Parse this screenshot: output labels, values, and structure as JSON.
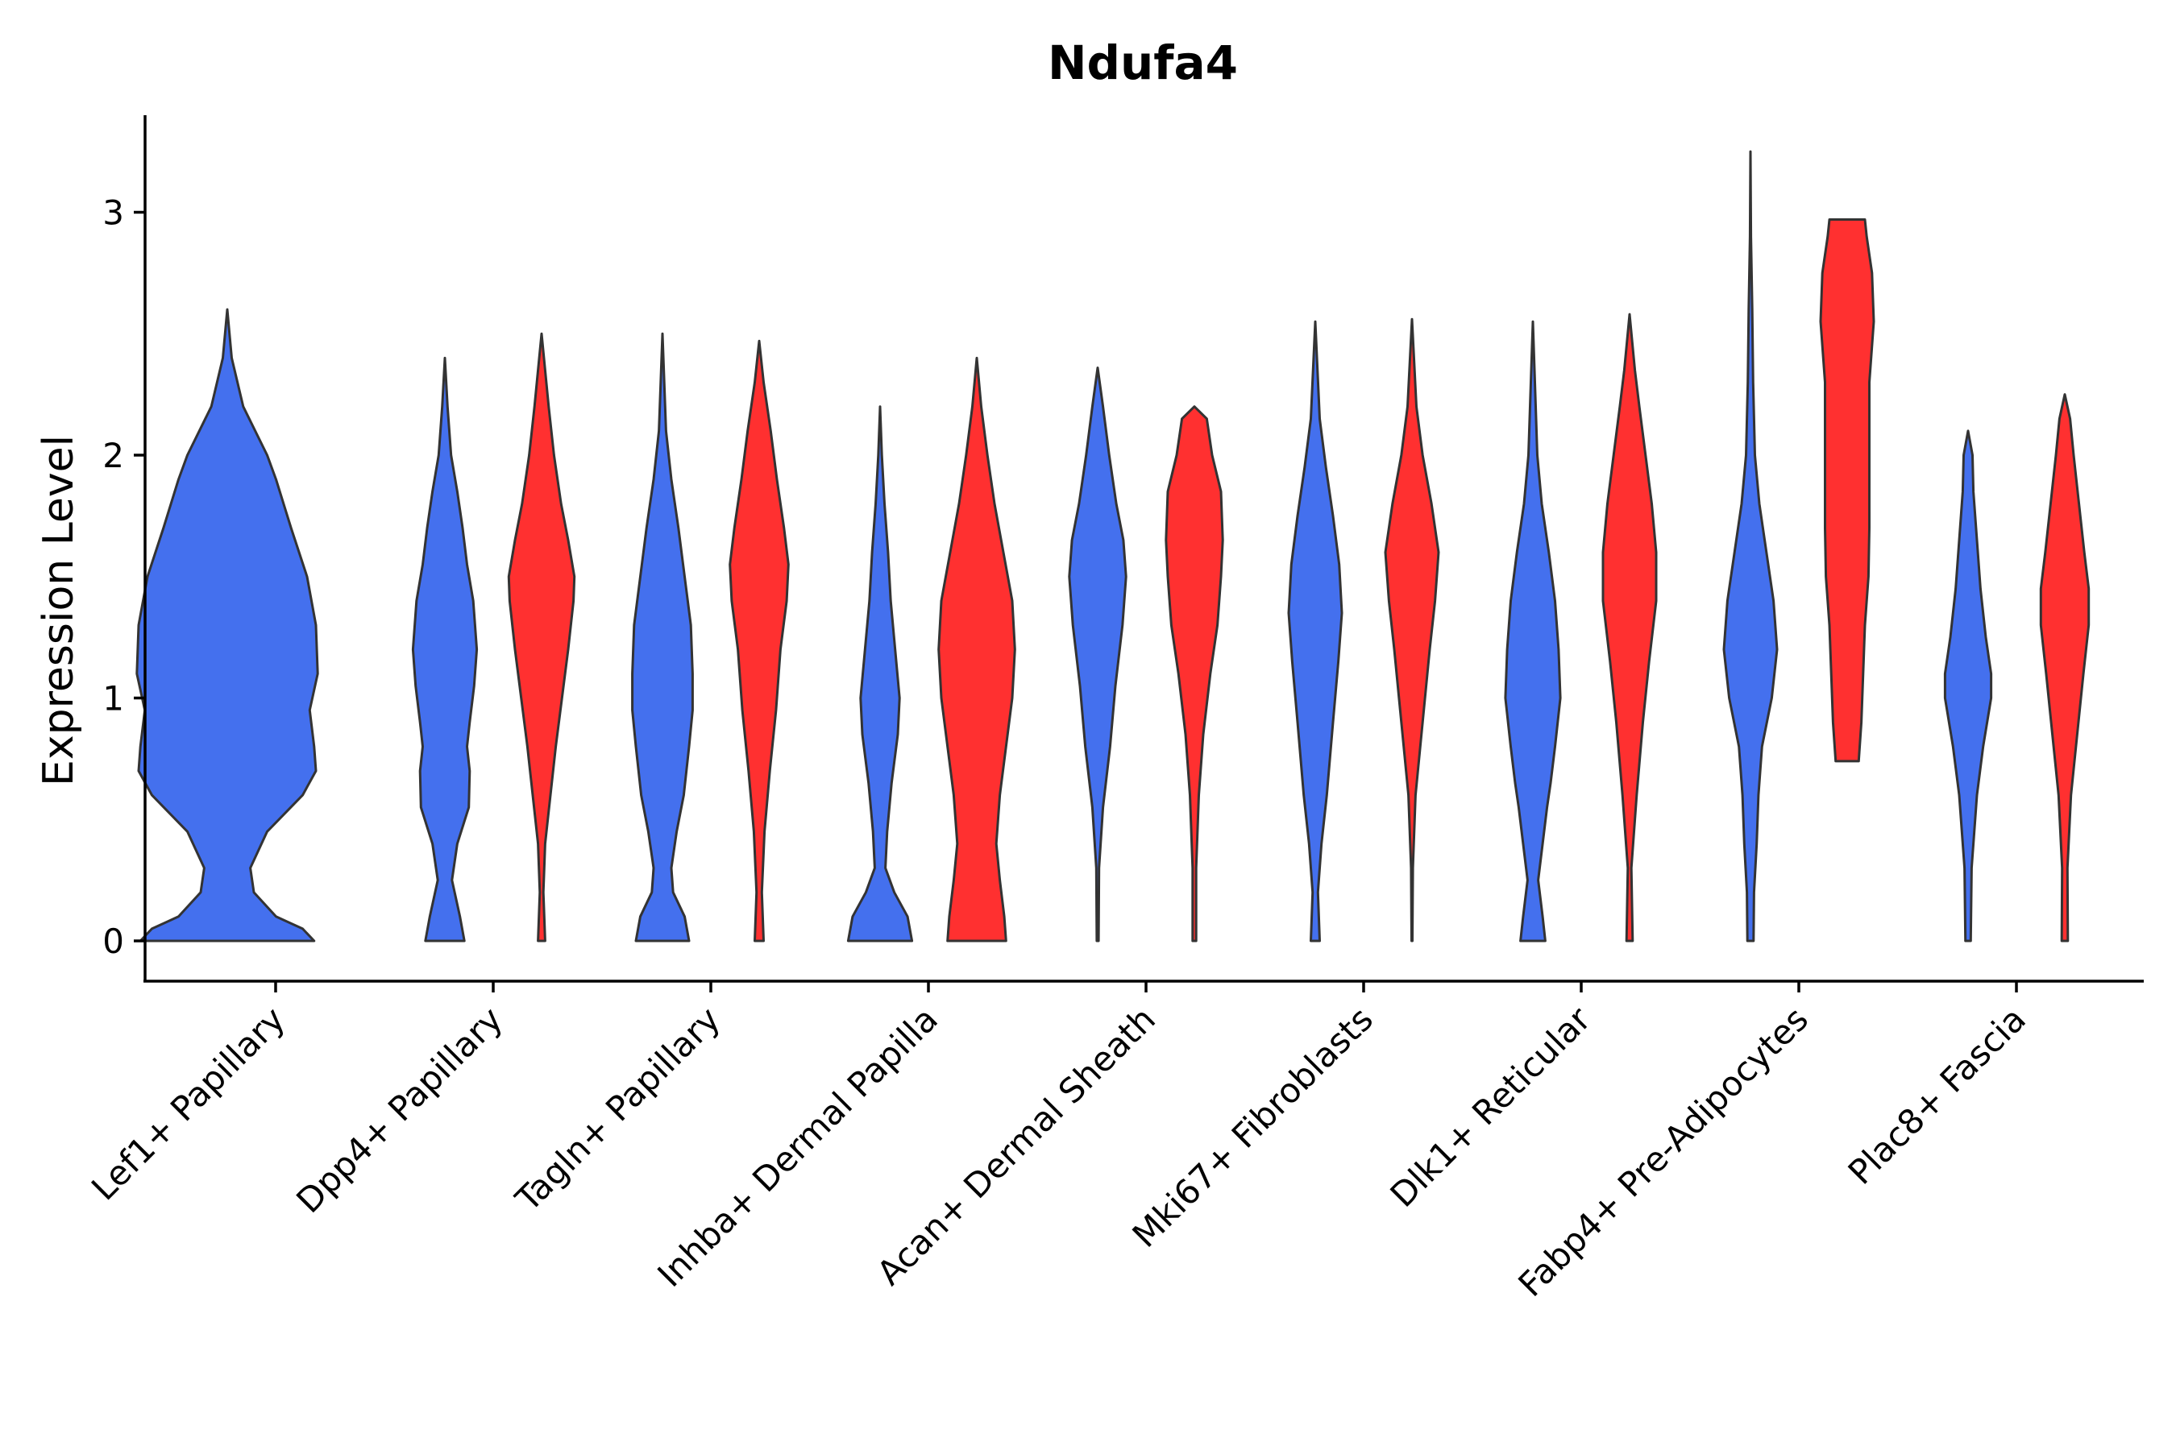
{
  "chart_data": {
    "type": "violin",
    "title": "Ndufa4",
    "xlabel": "",
    "ylabel": "Expression Level",
    "ylim": [
      -0.16,
      3.4
    ],
    "yticks": [
      0,
      1,
      2,
      3
    ],
    "grid": false,
    "legend": "none",
    "colors": {
      "blue": "#4470EE",
      "red": "#FF3030"
    },
    "categories": [
      "Lef1+ Papillary",
      "Dpp4+ Papillary",
      "Tagln+ Papillary",
      "Inhba+ Dermal Papilla",
      "Acan+ Dermal Sheath",
      "Mki67+ Fibroblasts",
      "Dlk1+ Reticular",
      "Fabp4+ Pre-Adipocytes",
      "Plac8+ Fascia"
    ],
    "violins": [
      {
        "category": 0,
        "group": "blue",
        "min": 0,
        "max": 2.6,
        "profile": [
          [
            0,
            0.98
          ],
          [
            0.05,
            0.85
          ],
          [
            0.1,
            0.55
          ],
          [
            0.2,
            0.3
          ],
          [
            0.3,
            0.26
          ],
          [
            0.45,
            0.45
          ],
          [
            0.6,
            0.85
          ],
          [
            0.7,
            1.0
          ],
          [
            0.8,
            0.98
          ],
          [
            0.95,
            0.93
          ],
          [
            1.1,
            1.02
          ],
          [
            1.3,
            1.0
          ],
          [
            1.5,
            0.9
          ],
          [
            1.7,
            0.72
          ],
          [
            1.9,
            0.55
          ],
          [
            2.0,
            0.45
          ],
          [
            2.2,
            0.18
          ],
          [
            2.4,
            0.05
          ],
          [
            2.6,
            0
          ]
        ]
      },
      {
        "category": 1,
        "group": "blue",
        "min": 0,
        "max": 2.4,
        "profile": [
          [
            0,
            0.22
          ],
          [
            0.1,
            0.17
          ],
          [
            0.25,
            0.08
          ],
          [
            0.4,
            0.14
          ],
          [
            0.55,
            0.27
          ],
          [
            0.7,
            0.28
          ],
          [
            0.8,
            0.25
          ],
          [
            0.9,
            0.28
          ],
          [
            1.05,
            0.33
          ],
          [
            1.2,
            0.36
          ],
          [
            1.4,
            0.32
          ],
          [
            1.55,
            0.25
          ],
          [
            1.7,
            0.2
          ],
          [
            1.85,
            0.14
          ],
          [
            2.0,
            0.07
          ],
          [
            2.2,
            0.03
          ],
          [
            2.4,
            0
          ]
        ]
      },
      {
        "category": 1,
        "group": "red",
        "min": 0,
        "max": 2.5,
        "profile": [
          [
            0,
            0.04
          ],
          [
            0.2,
            0.02
          ],
          [
            0.4,
            0.04
          ],
          [
            0.6,
            0.1
          ],
          [
            0.8,
            0.16
          ],
          [
            1.0,
            0.23
          ],
          [
            1.2,
            0.3
          ],
          [
            1.4,
            0.36
          ],
          [
            1.5,
            0.37
          ],
          [
            1.65,
            0.3
          ],
          [
            1.8,
            0.22
          ],
          [
            2.0,
            0.14
          ],
          [
            2.2,
            0.08
          ],
          [
            2.35,
            0.04
          ],
          [
            2.5,
            0
          ]
        ]
      },
      {
        "category": 2,
        "group": "blue",
        "min": 0,
        "max": 2.5,
        "profile": [
          [
            0,
            0.3
          ],
          [
            0.1,
            0.25
          ],
          [
            0.2,
            0.12
          ],
          [
            0.3,
            0.1
          ],
          [
            0.45,
            0.16
          ],
          [
            0.6,
            0.24
          ],
          [
            0.8,
            0.3
          ],
          [
            0.95,
            0.34
          ],
          [
            1.1,
            0.34
          ],
          [
            1.3,
            0.32
          ],
          [
            1.5,
            0.25
          ],
          [
            1.7,
            0.18
          ],
          [
            1.9,
            0.1
          ],
          [
            2.1,
            0.04
          ],
          [
            2.5,
            0
          ]
        ]
      },
      {
        "category": 2,
        "group": "red",
        "min": 0,
        "max": 2.47,
        "profile": [
          [
            0,
            0.05
          ],
          [
            0.2,
            0.03
          ],
          [
            0.45,
            0.06
          ],
          [
            0.7,
            0.12
          ],
          [
            0.95,
            0.19
          ],
          [
            1.2,
            0.24
          ],
          [
            1.4,
            0.31
          ],
          [
            1.55,
            0.33
          ],
          [
            1.7,
            0.28
          ],
          [
            1.9,
            0.2
          ],
          [
            2.1,
            0.13
          ],
          [
            2.3,
            0.05
          ],
          [
            2.47,
            0
          ]
        ]
      },
      {
        "category": 3,
        "group": "blue",
        "min": 0,
        "max": 2.2,
        "profile": [
          [
            0,
            0.36
          ],
          [
            0.1,
            0.31
          ],
          [
            0.2,
            0.16
          ],
          [
            0.3,
            0.06
          ],
          [
            0.45,
            0.08
          ],
          [
            0.65,
            0.13
          ],
          [
            0.85,
            0.2
          ],
          [
            1.0,
            0.22
          ],
          [
            1.2,
            0.17
          ],
          [
            1.4,
            0.12
          ],
          [
            1.6,
            0.09
          ],
          [
            1.8,
            0.05
          ],
          [
            2.0,
            0.02
          ],
          [
            2.2,
            0
          ]
        ]
      },
      {
        "category": 3,
        "group": "red",
        "min": 0,
        "max": 2.4,
        "profile": [
          [
            0,
            0.33
          ],
          [
            0.1,
            0.31
          ],
          [
            0.25,
            0.26
          ],
          [
            0.4,
            0.22
          ],
          [
            0.6,
            0.26
          ],
          [
            0.8,
            0.33
          ],
          [
            1.0,
            0.4
          ],
          [
            1.2,
            0.43
          ],
          [
            1.4,
            0.4
          ],
          [
            1.6,
            0.3
          ],
          [
            1.8,
            0.2
          ],
          [
            2.0,
            0.12
          ],
          [
            2.2,
            0.05
          ],
          [
            2.4,
            0
          ]
        ]
      },
      {
        "category": 4,
        "group": "blue",
        "min": 0,
        "max": 2.36,
        "profile": [
          [
            0,
            0.01
          ],
          [
            0.3,
            0.015
          ],
          [
            0.55,
            0.06
          ],
          [
            0.8,
            0.14
          ],
          [
            1.05,
            0.2
          ],
          [
            1.3,
            0.28
          ],
          [
            1.5,
            0.32
          ],
          [
            1.65,
            0.29
          ],
          [
            1.8,
            0.21
          ],
          [
            2.0,
            0.13
          ],
          [
            2.2,
            0.06
          ],
          [
            2.36,
            0
          ]
        ]
      },
      {
        "category": 4,
        "group": "red",
        "min": 0,
        "max": 2.2,
        "profile": [
          [
            0,
            0.02
          ],
          [
            0.3,
            0.02
          ],
          [
            0.6,
            0.05
          ],
          [
            0.85,
            0.1
          ],
          [
            1.1,
            0.18
          ],
          [
            1.3,
            0.26
          ],
          [
            1.5,
            0.3
          ],
          [
            1.65,
            0.32
          ],
          [
            1.85,
            0.3
          ],
          [
            2.0,
            0.2
          ],
          [
            2.15,
            0.14
          ],
          [
            2.2,
            0
          ]
        ]
      },
      {
        "category": 5,
        "group": "blue",
        "min": 0,
        "max": 2.55,
        "profile": [
          [
            0,
            0.05
          ],
          [
            0.2,
            0.03
          ],
          [
            0.4,
            0.07
          ],
          [
            0.6,
            0.13
          ],
          [
            0.9,
            0.2
          ],
          [
            1.15,
            0.26
          ],
          [
            1.35,
            0.3
          ],
          [
            1.55,
            0.27
          ],
          [
            1.75,
            0.2
          ],
          [
            1.95,
            0.12
          ],
          [
            2.15,
            0.05
          ],
          [
            2.55,
            0
          ]
        ]
      },
      {
        "category": 5,
        "group": "red",
        "min": 0,
        "max": 2.56,
        "profile": [
          [
            0,
            0.005
          ],
          [
            0.3,
            0.01
          ],
          [
            0.6,
            0.04
          ],
          [
            0.9,
            0.12
          ],
          [
            1.2,
            0.2
          ],
          [
            1.4,
            0.26
          ],
          [
            1.6,
            0.3
          ],
          [
            1.8,
            0.22
          ],
          [
            2.0,
            0.12
          ],
          [
            2.2,
            0.05
          ],
          [
            2.56,
            0
          ]
        ]
      },
      {
        "category": 6,
        "group": "blue",
        "min": 0,
        "max": 2.55,
        "profile": [
          [
            0,
            0.14
          ],
          [
            0.1,
            0.11
          ],
          [
            0.25,
            0.06
          ],
          [
            0.4,
            0.11
          ],
          [
            0.55,
            0.16
          ],
          [
            0.65,
            0.2
          ],
          [
            0.8,
            0.25
          ],
          [
            1.0,
            0.31
          ],
          [
            1.2,
            0.29
          ],
          [
            1.4,
            0.25
          ],
          [
            1.6,
            0.18
          ],
          [
            1.8,
            0.1
          ],
          [
            2.0,
            0.05
          ],
          [
            2.55,
            0
          ]
        ]
      },
      {
        "category": 6,
        "group": "red",
        "min": 0,
        "max": 2.58,
        "profile": [
          [
            0,
            0.035
          ],
          [
            0.3,
            0.02
          ],
          [
            0.6,
            0.08
          ],
          [
            0.9,
            0.15
          ],
          [
            1.15,
            0.22
          ],
          [
            1.4,
            0.3
          ],
          [
            1.6,
            0.3
          ],
          [
            1.8,
            0.25
          ],
          [
            2.0,
            0.18
          ],
          [
            2.2,
            0.11
          ],
          [
            2.35,
            0.06
          ],
          [
            2.58,
            0
          ]
        ]
      },
      {
        "category": 7,
        "group": "blue",
        "min": 0,
        "max": 3.25,
        "profile": [
          [
            0,
            0.035
          ],
          [
            0.2,
            0.04
          ],
          [
            0.4,
            0.07
          ],
          [
            0.6,
            0.09
          ],
          [
            0.8,
            0.13
          ],
          [
            1.0,
            0.24
          ],
          [
            1.2,
            0.3
          ],
          [
            1.4,
            0.26
          ],
          [
            1.6,
            0.18
          ],
          [
            1.8,
            0.1
          ],
          [
            2.0,
            0.05
          ],
          [
            2.3,
            0.03
          ],
          [
            2.6,
            0.02
          ],
          [
            2.9,
            0.005
          ],
          [
            3.25,
            0
          ]
        ]
      },
      {
        "category": 7,
        "group": "red",
        "min": 0.74,
        "max": 2.97,
        "profile": [
          [
            0.74,
            0.13
          ],
          [
            0.9,
            0.16
          ],
          [
            1.1,
            0.18
          ],
          [
            1.3,
            0.2
          ],
          [
            1.5,
            0.24
          ],
          [
            1.7,
            0.25
          ],
          [
            2.0,
            0.25
          ],
          [
            2.3,
            0.25
          ],
          [
            2.55,
            0.3
          ],
          [
            2.75,
            0.28
          ],
          [
            2.9,
            0.22
          ],
          [
            2.97,
            0.2
          ]
        ]
      },
      {
        "category": 8,
        "group": "blue",
        "min": 0,
        "max": 2.1,
        "profile": [
          [
            0,
            0.03
          ],
          [
            0.3,
            0.04
          ],
          [
            0.6,
            0.1
          ],
          [
            0.8,
            0.17
          ],
          [
            1.0,
            0.26
          ],
          [
            1.1,
            0.26
          ],
          [
            1.25,
            0.2
          ],
          [
            1.45,
            0.14
          ],
          [
            1.65,
            0.1
          ],
          [
            1.85,
            0.06
          ],
          [
            2.0,
            0.05
          ],
          [
            2.1,
            0
          ]
        ]
      },
      {
        "category": 8,
        "group": "red",
        "min": 0,
        "max": 2.25,
        "profile": [
          [
            0,
            0.035
          ],
          [
            0.3,
            0.03
          ],
          [
            0.6,
            0.07
          ],
          [
            0.85,
            0.14
          ],
          [
            1.1,
            0.21
          ],
          [
            1.3,
            0.27
          ],
          [
            1.45,
            0.27
          ],
          [
            1.6,
            0.22
          ],
          [
            1.8,
            0.16
          ],
          [
            2.0,
            0.1
          ],
          [
            2.15,
            0.06
          ],
          [
            2.25,
            0
          ]
        ]
      }
    ]
  }
}
